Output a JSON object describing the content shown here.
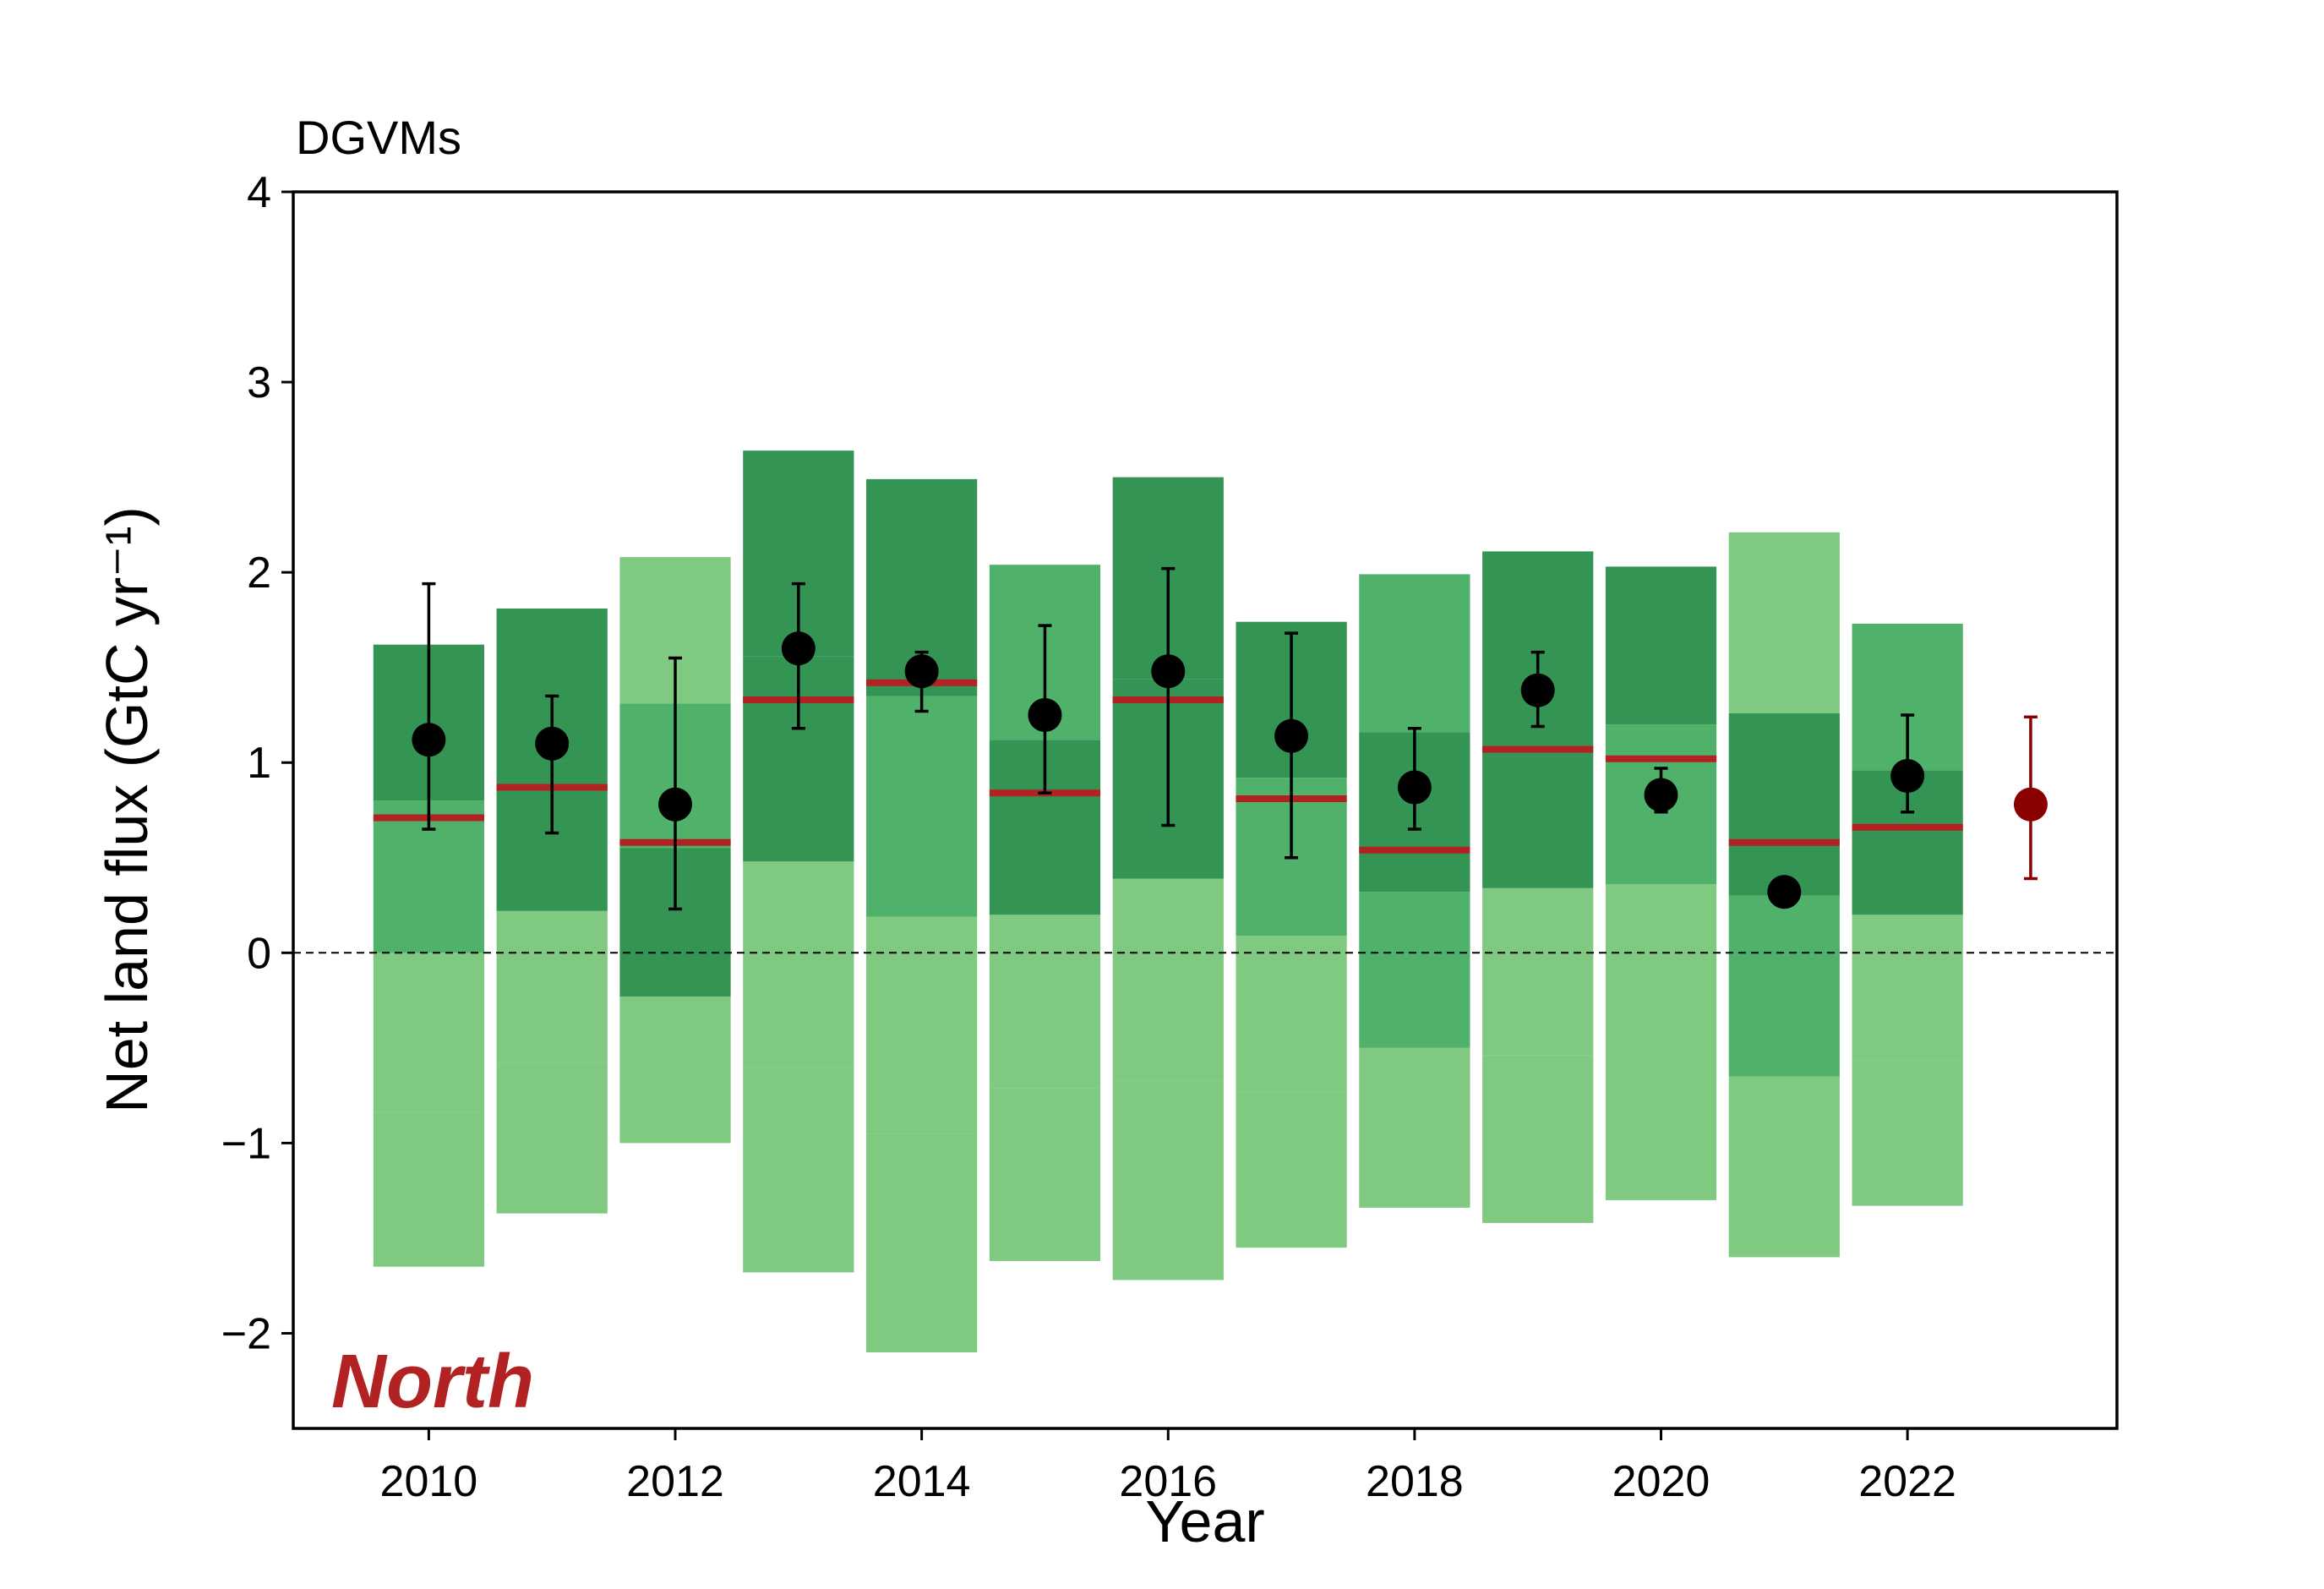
{
  "chart_data": {
    "type": "bar",
    "title": "DGVMs",
    "xlabel": "Year",
    "ylabel": "Net land flux (GtC yr⁻¹)",
    "region_label": "North",
    "xlim": [
      2008.9,
      2023.7
    ],
    "ylim": [
      -2.5,
      4
    ],
    "xticks": [
      2010,
      2012,
      2014,
      2016,
      2018,
      2020,
      2022
    ],
    "yticks": [
      -2,
      -1,
      0,
      1,
      2,
      3,
      4
    ],
    "ytick_labels": [
      "−2",
      "−1",
      "0",
      "1",
      "2",
      "3",
      "4"
    ],
    "grid": false,
    "zero_line": true,
    "colors": {
      "fill_dark": "#238b45",
      "fill_mid": "#41ab5d",
      "fill_light": "#74c476",
      "median_line": "#b22222",
      "observation_point": "#000000",
      "final_point": "#8b0000",
      "region_label": "#b22222"
    },
    "years": [
      2010,
      2011,
      2012,
      2013,
      2014,
      2015,
      2016,
      2017,
      2018,
      2019,
      2020,
      2021,
      2022
    ],
    "bars": [
      {
        "year": 2010,
        "segments": [
          {
            "y0": -1.65,
            "y1": -0.84,
            "shade": "light"
          },
          {
            "y0": -0.84,
            "y1": 0.0,
            "shade": "light"
          },
          {
            "y0": 0.0,
            "y1": 0.8,
            "shade": "mid"
          },
          {
            "y0": 0.8,
            "y1": 1.62,
            "shade": "dark"
          }
        ],
        "median": 0.71
      },
      {
        "year": 2011,
        "segments": [
          {
            "y0": -1.37,
            "y1": -0.58,
            "shade": "light"
          },
          {
            "y0": -0.58,
            "y1": 0.22,
            "shade": "light"
          },
          {
            "y0": 0.22,
            "y1": 1.01,
            "shade": "dark"
          },
          {
            "y0": 1.01,
            "y1": 1.81,
            "shade": "dark"
          }
        ],
        "median": 0.87
      },
      {
        "year": 2012,
        "segments": [
          {
            "y0": -1.0,
            "y1": -0.23,
            "shade": "light"
          },
          {
            "y0": -0.23,
            "y1": 0.55,
            "shade": "dark"
          },
          {
            "y0": 0.55,
            "y1": 1.31,
            "shade": "mid"
          },
          {
            "y0": 1.31,
            "y1": 2.08,
            "shade": "light"
          }
        ],
        "median": 0.58
      },
      {
        "year": 2013,
        "segments": [
          {
            "y0": -1.68,
            "y1": -0.6,
            "shade": "light"
          },
          {
            "y0": -0.6,
            "y1": 0.48,
            "shade": "light"
          },
          {
            "y0": 0.48,
            "y1": 1.56,
            "shade": "dark"
          },
          {
            "y0": 1.56,
            "y1": 2.64,
            "shade": "dark"
          }
        ],
        "median": 1.33
      },
      {
        "year": 2014,
        "segments": [
          {
            "y0": -2.1,
            "y1": -0.95,
            "shade": "light"
          },
          {
            "y0": -0.95,
            "y1": 0.19,
            "shade": "light"
          },
          {
            "y0": 0.19,
            "y1": 1.35,
            "shade": "mid"
          },
          {
            "y0": 1.35,
            "y1": 2.49,
            "shade": "dark"
          }
        ],
        "median": 1.42
      },
      {
        "year": 2015,
        "segments": [
          {
            "y0": -1.62,
            "y1": -0.71,
            "shade": "light"
          },
          {
            "y0": -0.71,
            "y1": 0.2,
            "shade": "light"
          },
          {
            "y0": 0.2,
            "y1": 1.12,
            "shade": "dark"
          },
          {
            "y0": 1.12,
            "y1": 2.04,
            "shade": "mid"
          }
        ],
        "median": 0.84
      },
      {
        "year": 2016,
        "segments": [
          {
            "y0": -1.72,
            "y1": -0.67,
            "shade": "light"
          },
          {
            "y0": -0.67,
            "y1": 0.39,
            "shade": "light"
          },
          {
            "y0": 0.39,
            "y1": 1.44,
            "shade": "dark"
          },
          {
            "y0": 1.44,
            "y1": 2.5,
            "shade": "dark"
          }
        ],
        "median": 1.33
      },
      {
        "year": 2017,
        "segments": [
          {
            "y0": -1.55,
            "y1": -0.73,
            "shade": "light"
          },
          {
            "y0": -0.73,
            "y1": 0.09,
            "shade": "light"
          },
          {
            "y0": 0.09,
            "y1": 0.92,
            "shade": "mid"
          },
          {
            "y0": 0.92,
            "y1": 1.74,
            "shade": "dark"
          }
        ],
        "median": 0.81
      },
      {
        "year": 2018,
        "segments": [
          {
            "y0": -1.34,
            "y1": -0.5,
            "shade": "light"
          },
          {
            "y0": -0.5,
            "y1": 0.32,
            "shade": "mid"
          },
          {
            "y0": 0.32,
            "y1": 1.16,
            "shade": "dark"
          },
          {
            "y0": 1.16,
            "y1": 1.99,
            "shade": "mid"
          }
        ],
        "median": 0.54
      },
      {
        "year": 2019,
        "segments": [
          {
            "y0": -1.42,
            "y1": -0.54,
            "shade": "light"
          },
          {
            "y0": -0.54,
            "y1": 0.34,
            "shade": "light"
          },
          {
            "y0": 0.34,
            "y1": 1.23,
            "shade": "dark"
          },
          {
            "y0": 1.23,
            "y1": 2.11,
            "shade": "dark"
          }
        ],
        "median": 1.07
      },
      {
        "year": 2020,
        "segments": [
          {
            "y0": -1.3,
            "y1": -0.47,
            "shade": "light"
          },
          {
            "y0": -0.47,
            "y1": 0.36,
            "shade": "light"
          },
          {
            "y0": 0.36,
            "y1": 1.2,
            "shade": "mid"
          },
          {
            "y0": 1.2,
            "y1": 2.03,
            "shade": "dark"
          }
        ],
        "median": 1.02
      },
      {
        "year": 2021,
        "segments": [
          {
            "y0": -1.6,
            "y1": -0.65,
            "shade": "light"
          },
          {
            "y0": -0.65,
            "y1": 0.3,
            "shade": "mid"
          },
          {
            "y0": 0.3,
            "y1": 1.26,
            "shade": "dark"
          },
          {
            "y0": 1.26,
            "y1": 2.21,
            "shade": "light"
          }
        ],
        "median": 0.58
      },
      {
        "year": 2022,
        "segments": [
          {
            "y0": -1.33,
            "y1": -0.57,
            "shade": "light"
          },
          {
            "y0": -0.57,
            "y1": 0.2,
            "shade": "light"
          },
          {
            "y0": 0.2,
            "y1": 0.96,
            "shade": "dark"
          },
          {
            "y0": 0.96,
            "y1": 1.73,
            "shade": "mid"
          }
        ],
        "median": 0.66
      }
    ],
    "points": [
      {
        "year": 2010,
        "value": 1.12,
        "low": 0.65,
        "high": 1.94
      },
      {
        "year": 2011,
        "value": 1.1,
        "low": 0.63,
        "high": 1.35
      },
      {
        "year": 2012,
        "value": 0.78,
        "low": 0.23,
        "high": 1.55
      },
      {
        "year": 2013,
        "value": 1.6,
        "low": 1.18,
        "high": 1.94
      },
      {
        "year": 2014,
        "value": 1.48,
        "low": 1.27,
        "high": 1.58
      },
      {
        "year": 2015,
        "value": 1.25,
        "low": 0.84,
        "high": 1.72
      },
      {
        "year": 2016,
        "value": 1.48,
        "low": 0.67,
        "high": 2.02
      },
      {
        "year": 2017,
        "value": 1.14,
        "low": 0.5,
        "high": 1.68
      },
      {
        "year": 2018,
        "value": 0.87,
        "low": 0.65,
        "high": 1.18
      },
      {
        "year": 2019,
        "value": 1.38,
        "low": 1.19,
        "high": 1.58
      },
      {
        "year": 2020,
        "value": 0.83,
        "low": 0.74,
        "high": 0.97
      },
      {
        "year": 2021,
        "value": 0.32,
        "low": null,
        "high": null
      },
      {
        "year": 2022,
        "value": 0.93,
        "low": 0.74,
        "high": 1.25
      }
    ],
    "final_point": {
      "year": 2023,
      "value": 0.78,
      "low": 0.39,
      "high": 1.24
    }
  }
}
